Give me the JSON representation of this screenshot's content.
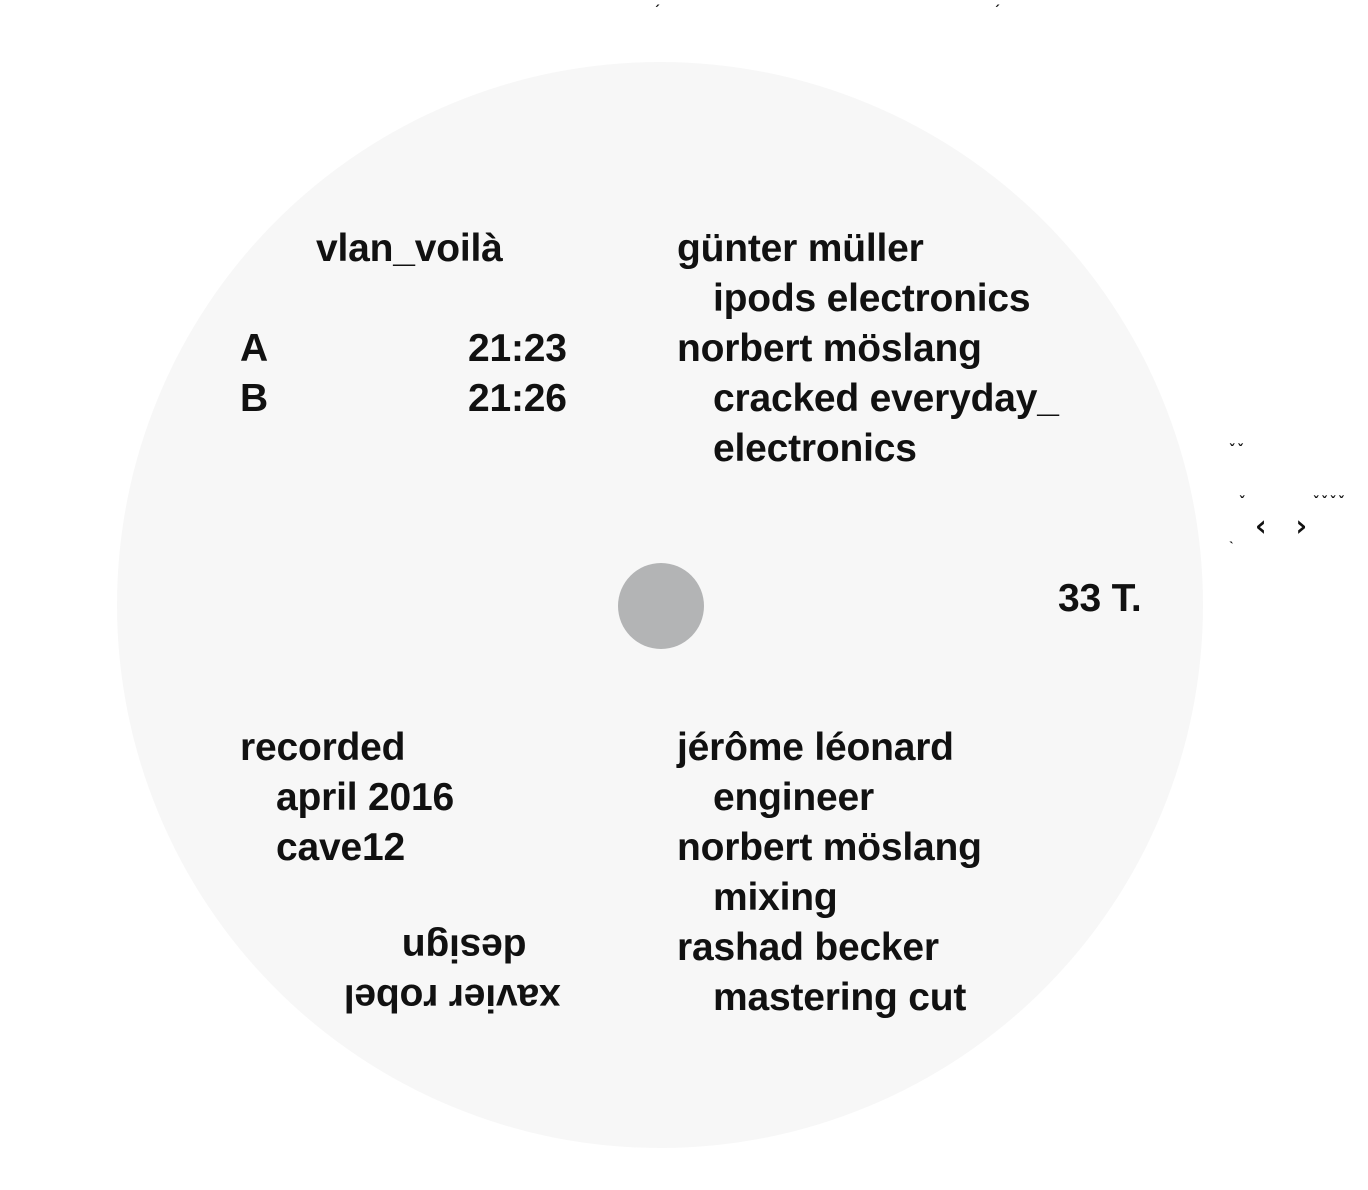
{
  "title": "vlan_voilà",
  "sides": [
    {
      "side": "A",
      "duration": "21:23"
    },
    {
      "side": "B",
      "duration": "21:26"
    }
  ],
  "performers": [
    {
      "name": "günter müller",
      "role": "ipods  electronics"
    },
    {
      "name": "norbert möslang",
      "role_line1": "cracked everyday_",
      "role_line2": "electronics"
    }
  ],
  "speed": "33 T.",
  "recording": {
    "label": "recorded",
    "date": "april 2016",
    "venue": "cave12"
  },
  "credits": [
    {
      "name": "jérôme léonard",
      "role": "engineer"
    },
    {
      "name": "norbert möslang",
      "role": "mixing"
    },
    {
      "name": "rashad becker",
      "role": "mastering  cut"
    }
  ],
  "design": {
    "label": "design",
    "name": "xavier robel"
  },
  "colors": {
    "label_background": "#f7f7f7",
    "spindle_hole": "#b3b4b5",
    "text": "#111111",
    "page_background": "#ffffff"
  }
}
